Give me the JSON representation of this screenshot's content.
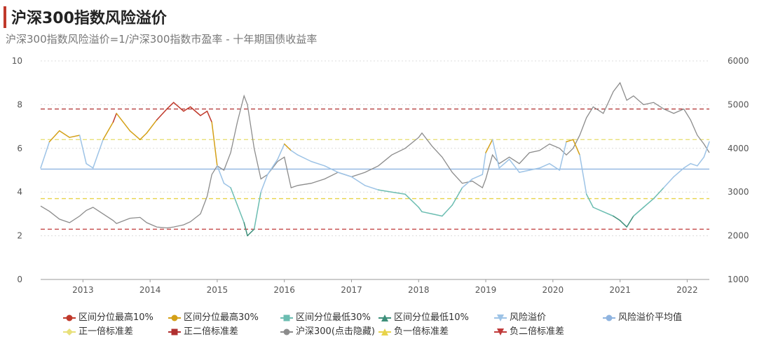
{
  "page": {
    "title": "沪深300指数风险溢价",
    "subtitle": "沪深300指数风险溢价=1/沪深300指数市盈率 - 十年期国债收益率"
  },
  "colors": {
    "top10": "#c0392b",
    "top30": "#d4a017",
    "low30": "#6bbdb1",
    "low10": "#3d8f7a",
    "premium": "#9dc3e6",
    "mean": "#8fb4e0",
    "plus1sd": "#e8e07a",
    "plus2sd": "#b03030",
    "index": "#8c8c8c",
    "minus1sd": "#e8d34a",
    "minus2sd": "#c03a3a"
  },
  "legend": [
    {
      "label": "区间分位最高10%",
      "marker": "circle",
      "color": "#c0392b"
    },
    {
      "label": "区间分位最高30%",
      "marker": "circle",
      "color": "#d4a017"
    },
    {
      "label": "区间分位最低30%",
      "marker": "square",
      "color": "#6bbdb1"
    },
    {
      "label": "区间分位最低10%",
      "marker": "triangle-up",
      "color": "#3d8f7a"
    },
    {
      "label": "风险溢价",
      "marker": "triangle-down",
      "color": "#9dc3e6"
    },
    {
      "label": "风险溢价平均值",
      "marker": "circle",
      "color": "#8fb4e0"
    },
    {
      "label": "正一倍标准差",
      "marker": "diamond",
      "color": "#e8e07a"
    },
    {
      "label": "正二倍标准差",
      "marker": "square",
      "color": "#b03030"
    },
    {
      "label": "沪深300(点击隐藏)",
      "marker": "circle",
      "color": "#8c8c8c"
    },
    {
      "label": "负一倍标准差",
      "marker": "triangle-up",
      "color": "#e8d34a"
    },
    {
      "label": "负二倍标准差",
      "marker": "triangle-down",
      "color": "#c03a3a"
    }
  ],
  "chart_data": {
    "type": "line",
    "x_ticks": [
      "2013",
      "2014",
      "2015",
      "2016",
      "2017",
      "2018",
      "2019",
      "2020",
      "2021",
      "2022"
    ],
    "xlim": [
      2012.37,
      2022.33
    ],
    "y_left": {
      "ticks": [
        0,
        2,
        4,
        6,
        8,
        10
      ],
      "range": [
        0,
        10
      ]
    },
    "y_right": {
      "ticks": [
        1000,
        2000,
        3000,
        4000,
        5000,
        6000
      ],
      "range": [
        1000,
        6000
      ]
    },
    "grid": "horizontal dotted",
    "legend_position": "bottom",
    "reference_lines": [
      {
        "name": "风险溢价平均值",
        "value": 5.05
      },
      {
        "name": "正一倍标准差",
        "value": 6.4
      },
      {
        "name": "正二倍标准差",
        "value": 7.8
      },
      {
        "name": "负一倍标准差",
        "value": 3.7
      },
      {
        "name": "负二倍标准差",
        "value": 2.3
      }
    ],
    "series": [
      {
        "name": "风险溢价",
        "axis": "left",
        "x": [
          2012.37,
          2012.5,
          2012.65,
          2012.8,
          2012.95,
          2013.05,
          2013.15,
          2013.3,
          2013.45,
          2013.5,
          2013.7,
          2013.85,
          2013.95,
          2014.1,
          2014.25,
          2014.35,
          2014.5,
          2014.6,
          2014.75,
          2014.85,
          2014.92,
          2015.0,
          2015.1,
          2015.2,
          2015.3,
          2015.4,
          2015.45,
          2015.55,
          2015.65,
          2015.75,
          2015.9,
          2016.0,
          2016.1,
          2016.2,
          2016.4,
          2016.6,
          2016.8,
          2017.0,
          2017.2,
          2017.4,
          2017.6,
          2017.8,
          2018.0,
          2018.05,
          2018.2,
          2018.35,
          2018.5,
          2018.65,
          2018.8,
          2018.95,
          2019.0,
          2019.1,
          2019.2,
          2019.35,
          2019.5,
          2019.65,
          2019.8,
          2019.95,
          2020.1,
          2020.2,
          2020.3,
          2020.4,
          2020.5,
          2020.6,
          2020.75,
          2020.9,
          2021.0,
          2021.1,
          2021.2,
          2021.35,
          2021.5,
          2021.65,
          2021.8,
          2021.95,
          2022.05,
          2022.15,
          2022.25,
          2022.33
        ],
        "y": [
          5.1,
          6.3,
          6.8,
          6.5,
          6.6,
          5.3,
          5.1,
          6.4,
          7.2,
          7.6,
          6.8,
          6.4,
          6.7,
          7.3,
          7.8,
          8.1,
          7.7,
          7.9,
          7.5,
          7.7,
          7.2,
          5.2,
          4.4,
          4.2,
          3.4,
          2.6,
          2.0,
          2.3,
          4.0,
          4.8,
          5.5,
          6.2,
          5.9,
          5.7,
          5.4,
          5.2,
          4.9,
          4.7,
          4.3,
          4.1,
          4.0,
          3.9,
          3.3,
          3.1,
          3.0,
          2.9,
          3.4,
          4.2,
          4.6,
          4.8,
          5.8,
          6.4,
          5.1,
          5.5,
          4.9,
          5.0,
          5.1,
          5.3,
          5.0,
          6.3,
          6.4,
          5.7,
          3.9,
          3.3,
          3.1,
          2.9,
          2.7,
          2.4,
          2.9,
          3.3,
          3.7,
          4.2,
          4.7,
          5.1,
          5.3,
          5.2,
          5.6,
          6.3
        ]
      },
      {
        "name": "沪深300(点击隐藏)",
        "axis": "right",
        "x": [
          2012.37,
          2012.5,
          2012.65,
          2012.8,
          2012.95,
          2013.05,
          2013.15,
          2013.3,
          2013.45,
          2013.5,
          2013.7,
          2013.85,
          2013.95,
          2014.1,
          2014.25,
          2014.35,
          2014.5,
          2014.6,
          2014.75,
          2014.85,
          2014.92,
          2015.0,
          2015.1,
          2015.2,
          2015.3,
          2015.4,
          2015.45,
          2015.55,
          2015.65,
          2015.75,
          2015.9,
          2016.0,
          2016.1,
          2016.2,
          2016.4,
          2016.6,
          2016.8,
          2017.0,
          2017.2,
          2017.4,
          2017.6,
          2017.8,
          2018.0,
          2018.05,
          2018.2,
          2018.35,
          2018.5,
          2018.65,
          2018.8,
          2018.95,
          2019.0,
          2019.1,
          2019.2,
          2019.35,
          2019.5,
          2019.65,
          2019.8,
          2019.95,
          2020.1,
          2020.2,
          2020.3,
          2020.4,
          2020.5,
          2020.6,
          2020.75,
          2020.9,
          2021.0,
          2021.1,
          2021.2,
          2021.35,
          2021.5,
          2021.65,
          2021.8,
          2021.95,
          2022.05,
          2022.15,
          2022.25,
          2022.33
        ],
        "y": [
          2680,
          2560,
          2380,
          2300,
          2450,
          2580,
          2650,
          2500,
          2350,
          2280,
          2400,
          2420,
          2300,
          2200,
          2180,
          2200,
          2250,
          2320,
          2500,
          2900,
          3400,
          3600,
          3500,
          3900,
          4600,
          5200,
          5000,
          4000,
          3300,
          3400,
          3700,
          3800,
          3100,
          3150,
          3200,
          3300,
          3450,
          3350,
          3450,
          3600,
          3850,
          4000,
          4250,
          4350,
          4050,
          3800,
          3450,
          3200,
          3250,
          3100,
          3300,
          3850,
          3650,
          3800,
          3650,
          3900,
          3950,
          4100,
          4000,
          3850,
          4000,
          4300,
          4700,
          4950,
          4800,
          5300,
          5500,
          5100,
          5200,
          5000,
          5050,
          4900,
          4800,
          4900,
          4650,
          4300,
          4100,
          3900
        ]
      }
    ]
  }
}
